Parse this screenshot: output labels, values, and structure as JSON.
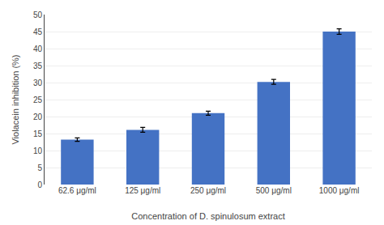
{
  "chart_data": {
    "type": "bar",
    "categories": [
      "62.6 μg/ml",
      "125 μg/ml",
      "250 μg/ml",
      "500 μg/ml",
      "1000 μg/ml"
    ],
    "values": [
      13.2,
      16.1,
      21.0,
      30.2,
      45.0
    ],
    "errors": [
      0.5,
      0.7,
      0.6,
      0.7,
      0.8
    ],
    "color": "#4472C4",
    "xlabel": "Concentration of D. spinulosum extract",
    "ylabel": "Violacein inhibition (%)",
    "ylim": [
      0,
      50
    ],
    "yticks": [
      0,
      5,
      10,
      15,
      20,
      25,
      30,
      35,
      40,
      45,
      50
    ],
    "grid": true
  }
}
